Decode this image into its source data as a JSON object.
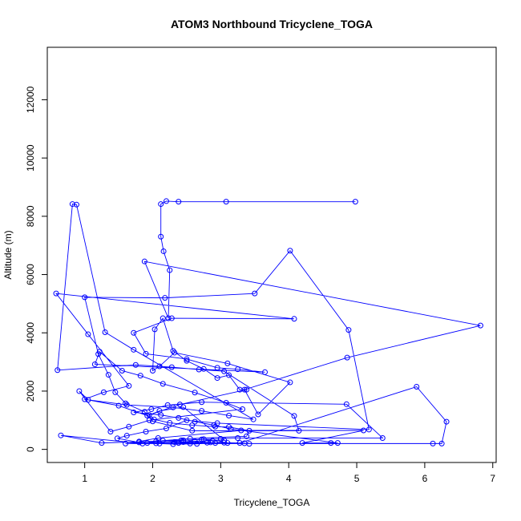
{
  "chart_data": {
    "type": "line",
    "title": "ATOM3 Northbound Tricyclene_TOGA",
    "xlabel": "Tricyclene_TOGA",
    "ylabel": "Altitude (m)",
    "xlim": [
      0.45,
      7.05
    ],
    "ylim": [
      -450,
      13800
    ],
    "x_ticks": [
      1,
      2,
      3,
      4,
      5,
      6,
      7
    ],
    "y_ticks": [
      0,
      2000,
      4000,
      6000,
      8000,
      10000,
      12000
    ],
    "x_tick_labels": [
      "1",
      "2",
      "3",
      "4",
      "5",
      "6",
      "7"
    ],
    "y_tick_labels": [
      "0",
      "2000",
      "4000",
      "6000",
      "8000",
      "10000",
      "12000"
    ],
    "grid": false,
    "markers": "open-circle",
    "series_color": "#0000ff",
    "series": [
      {
        "x": [
          4.98,
          3.08,
          2.38,
          2.2,
          2.12,
          2.12,
          2.16,
          2.25,
          2.23,
          1.88,
          6.82,
          4.86,
          3.35,
          3.55,
          4.02,
          3.1,
          2.32,
          2.1,
          2.0,
          2.03,
          2.15,
          2.3,
          2.5,
          2.75,
          2.95,
          3.12,
          3.28,
          3.38,
          2.4,
          1.92,
          1.5,
          1.0,
          1.28,
          1.65,
          1.05,
          0.58,
          4.08,
          2.28,
          1.72,
          1.9,
          2.5,
          2.95,
          3.25,
          3.65,
          1.15,
          1.22,
          1.55,
          1.82,
          2.15,
          2.62,
          3.08,
          3.32,
          1.95,
          1.65,
          1.38,
          0.92,
          1.05,
          1.62,
          2.3,
          2.72,
          3.12,
          3.48,
          1.72,
          1.3,
          0.88,
          0.82,
          0.6,
          1.75,
          2.28,
          2.68,
          3.05,
          4.08,
          4.15,
          2.58,
          2.0,
          1.88,
          1.6,
          1.45,
          1.35,
          1.2,
          1.0,
          2.18,
          3.5,
          4.02,
          4.88,
          5.18,
          2.95,
          2.5,
          2.2,
          1.9,
          1.62,
          1.48,
          1.8,
          2.05,
          2.45,
          2.75,
          3.05,
          3.28,
          5.88,
          6.32,
          6.25,
          6.12,
          1.6,
          1.92,
          2.32,
          2.62,
          2.88,
          3.05,
          2.45,
          2.1,
          1.95,
          2.02,
          2.25,
          2.58,
          2.92,
          3.12,
          3.42,
          3.38,
          2.55,
          2.15,
          1.85,
          0.65,
          1.25,
          2.05,
          2.42,
          2.72,
          3.0,
          3.25,
          5.38,
          4.85,
          2.72,
          2.22,
          1.98,
          1.72,
          2.12,
          2.38,
          2.62,
          2.9,
          3.15,
          4.72,
          4.62,
          4.2,
          5.1,
          3.3,
          2.08,
          1.8,
          2.45,
          2.85,
          2.55,
          2.92,
          2.65,
          2.3,
          2.1,
          2.38,
          2.8,
          3.1,
          3.35,
          3.42
        ],
        "y": [
          8500,
          8500,
          8500,
          8520,
          8420,
          7300,
          6800,
          6150,
          4500,
          6450,
          4250,
          3150,
          2050,
          1200,
          2300,
          2950,
          3320,
          2850,
          2700,
          4120,
          4500,
          3380,
          3040,
          2760,
          2450,
          2550,
          2050,
          2050,
          1540,
          1160,
          1500,
          1720,
          1960,
          2180,
          3950,
          5350,
          4480,
          4500,
          4000,
          3280,
          3100,
          2800,
          2750,
          2650,
          2920,
          3350,
          2700,
          2530,
          2250,
          1950,
          1600,
          1380,
          1000,
          780,
          610,
          2000,
          1700,
          1530,
          1440,
          1320,
          1160,
          1030,
          3420,
          4020,
          8400,
          8420,
          2720,
          2900,
          2820,
          2740,
          2680,
          1150,
          640,
          640,
          960,
          1290,
          1580,
          1960,
          2560,
          3270,
          5220,
          5200,
          5350,
          6820,
          4100,
          680,
          900,
          1000,
          720,
          610,
          470,
          380,
          240,
          210,
          310,
          350,
          230,
          220,
          2150,
          950,
          200,
          200,
          200,
          220,
          250,
          280,
          300,
          320,
          1450,
          1320,
          1180,
          1030,
          910,
          830,
          780,
          770,
          640,
          450,
          370,
          300,
          200,
          480,
          220,
          280,
          310,
          340,
          360,
          390,
          390,
          1550,
          1620,
          1520,
          1380,
          1270,
          1180,
          1080,
          950,
          830,
          700,
          220,
          220,
          220,
          650,
          650,
          390,
          270,
          250,
          240,
          200,
          220,
          190,
          180,
          200,
          220,
          230,
          220,
          210,
          190
        ]
      }
    ]
  }
}
